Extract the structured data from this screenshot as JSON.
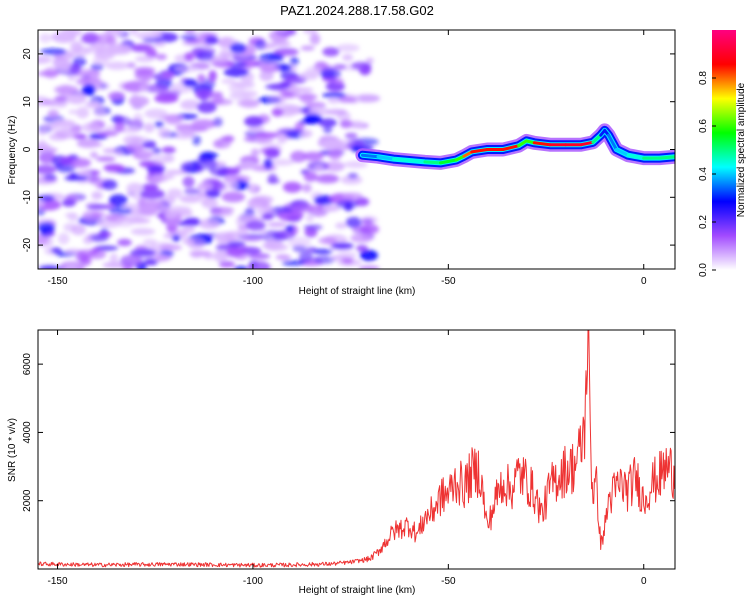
{
  "title": "PAZ1.2024.288.17.58.G02",
  "chart_data": [
    {
      "type": "heatmap",
      "xlabel": "Height of straight line (km)",
      "ylabel": "Frequency (Hz)",
      "xlim": [
        -155,
        8
      ],
      "ylim": [
        -25,
        25
      ],
      "xticks": [
        -150,
        -100,
        -50,
        0
      ],
      "yticks": [
        -20,
        -10,
        0,
        10,
        20
      ],
      "grid": false,
      "colorbar": {
        "label": "Normalized spectral amplitude",
        "range": [
          0,
          1
        ],
        "ticks": [
          0.0,
          0.2,
          0.4,
          0.6,
          0.8
        ],
        "colors": [
          "#ffffff",
          "#a24bff",
          "#0000ff",
          "#00ffff",
          "#00ff00",
          "#ffff00",
          "#ff0000",
          "#ff0080"
        ]
      },
      "noise_region": {
        "x_range": [
          -155,
          -70
        ],
        "typical_amplitude": [
          0.05,
          0.2
        ]
      },
      "ridge": {
        "x": [
          -72,
          -68,
          -64,
          -60,
          -56,
          -52,
          -48,
          -46,
          -44,
          -40,
          -36,
          -32,
          -30,
          -28,
          -24,
          -20,
          -16,
          -13,
          -11,
          -10,
          -9,
          -7,
          -4,
          0,
          4,
          8
        ],
        "frequency": [
          -1.2,
          -1.5,
          -2.0,
          -2.3,
          -2.6,
          -2.8,
          -2.2,
          -1.4,
          -0.5,
          0,
          0,
          0.8,
          1.8,
          1.4,
          1.0,
          1.0,
          1.0,
          1.5,
          3.0,
          4.0,
          3.0,
          0.0,
          -1.2,
          -1.8,
          -1.8,
          -1.5
        ],
        "amplitude": [
          0.2,
          0.35,
          0.4,
          0.45,
          0.4,
          0.5,
          0.55,
          0.6,
          0.8,
          0.85,
          0.85,
          0.5,
          0.6,
          0.55,
          0.85,
          0.9,
          0.9,
          0.5,
          0.3,
          0.25,
          0.3,
          0.35,
          0.4,
          0.45,
          0.5,
          0.5
        ]
      }
    },
    {
      "type": "line",
      "xlabel": "Height of straight line (km)",
      "ylabel": "SNR (10 * v/v)",
      "xlim": [
        -155,
        8
      ],
      "ylim": [
        0,
        7000
      ],
      "xticks": [
        -150,
        -100,
        -50,
        0
      ],
      "yticks": [
        2000,
        4000,
        6000
      ],
      "grid": false,
      "series": [
        {
          "color": "#ee3333",
          "x": [
            -155,
            -140,
            -120,
            -100,
            -90,
            -80,
            -75,
            -70,
            -68,
            -66,
            -64,
            -62,
            -60,
            -58,
            -56,
            -54,
            -52,
            -50,
            -48,
            -46,
            -44,
            -42,
            -40,
            -38,
            -36,
            -34,
            -32,
            -30,
            -28,
            -26,
            -24,
            -22,
            -20,
            -18,
            -17,
            -16,
            -15.5,
            -15,
            -14.5,
            -14,
            -13.5,
            -13,
            -12,
            -11,
            -10,
            -9,
            -8,
            -6,
            -4,
            -2,
            0,
            2,
            4,
            6,
            8
          ],
          "y": [
            150,
            120,
            140,
            110,
            120,
            150,
            200,
            300,
            500,
            800,
            1100,
            1200,
            1300,
            1000,
            1500,
            1700,
            2100,
            2200,
            2600,
            2400,
            2800,
            2900,
            1200,
            2000,
            2600,
            2300,
            2800,
            2600,
            2200,
            1600,
            2400,
            2700,
            2900,
            3000,
            3200,
            3500,
            4000,
            4300,
            5600,
            7000,
            3000,
            2300,
            2400,
            700,
            1200,
            2000,
            2200,
            2500,
            2300,
            2700,
            2000,
            2500,
            2700,
            3000,
            2800
          ]
        }
      ]
    }
  ]
}
